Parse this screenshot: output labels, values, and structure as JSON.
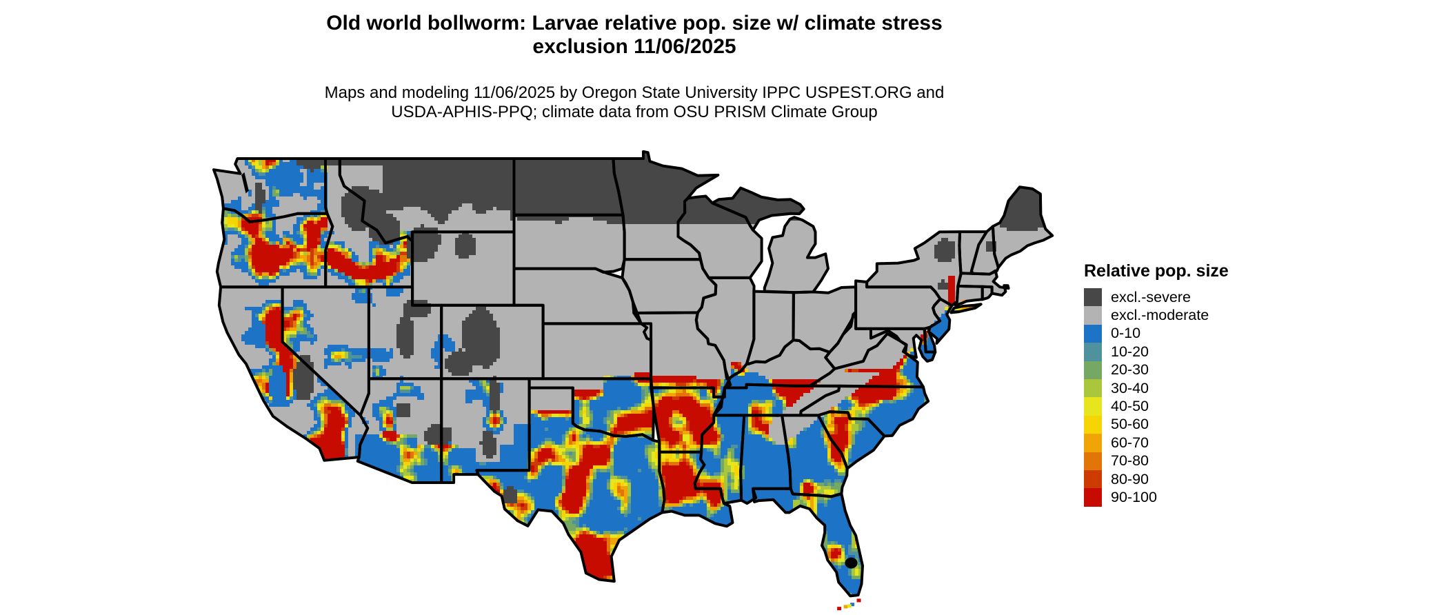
{
  "title": {
    "line1": "Old world bollworm: Larvae relative pop. size w/ climate stress",
    "line2": "exclusion 11/06/2025"
  },
  "subtitle": {
    "line1": "Maps and modeling 11/06/2025 by Oregon State University IPPC USPEST.ORG and",
    "line2": "USDA-APHIS-PPQ; climate data from OSU PRISM Climate Group"
  },
  "map": {
    "area": "Continental United States",
    "kind": "raster choropleth with state borders"
  },
  "legend": {
    "title": "Relative pop. size",
    "items": [
      {
        "label": "excl.-severe",
        "color": "#474747"
      },
      {
        "label": "excl.-moderate",
        "color": "#b3b3b3"
      },
      {
        "label": "0-10",
        "color": "#1d73c6"
      },
      {
        "label": "10-20",
        "color": "#4f929e"
      },
      {
        "label": "20-30",
        "color": "#74a863"
      },
      {
        "label": "30-40",
        "color": "#a9c63d"
      },
      {
        "label": "40-50",
        "color": "#e6e51e"
      },
      {
        "label": "50-60",
        "color": "#f7d403"
      },
      {
        "label": "60-70",
        "color": "#f0a405"
      },
      {
        "label": "70-80",
        "color": "#e17507"
      },
      {
        "label": "80-90",
        "color": "#ce3b02"
      },
      {
        "label": "90-100",
        "color": "#c80b01"
      }
    ]
  }
}
